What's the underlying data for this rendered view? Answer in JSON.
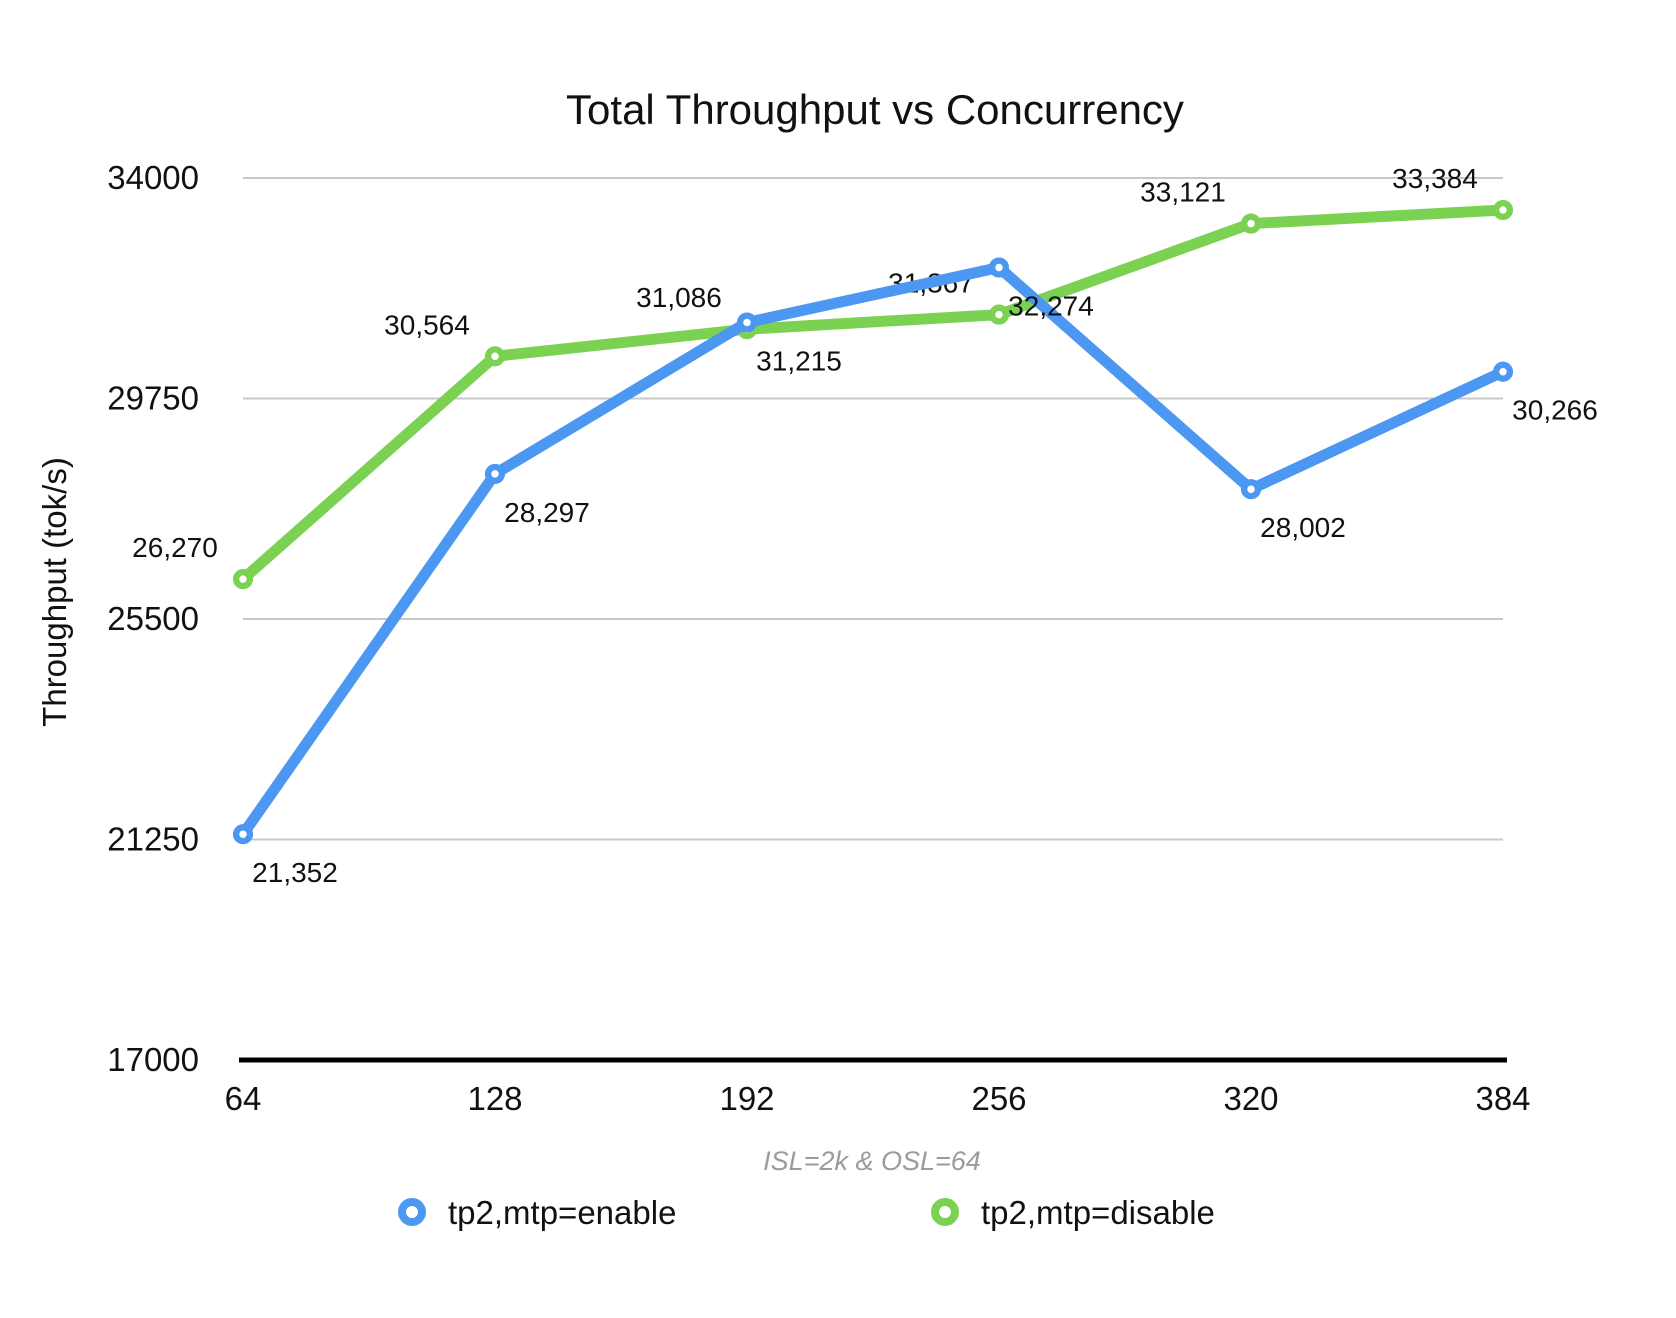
{
  "colors": {
    "background": "#ffffff",
    "grid": "#C8C8C8",
    "axis_baseline": "#000000",
    "text": "#111111",
    "subtitle": "#9B9B9B",
    "series_enable_blue": "#4B97F1",
    "series_disable_green": "#7BD152"
  },
  "chart_data": {
    "type": "line",
    "title": "Total Throughput vs Concurrency",
    "subtitle": "ISL=2k & OSL=64",
    "ylabel": "Throughput (tok/s)",
    "xlabel": "",
    "x_categories": [
      "64",
      "128",
      "192",
      "256",
      "320",
      "384"
    ],
    "x_values": [
      64,
      128,
      192,
      256,
      320,
      384
    ],
    "y_ticks": [
      34000,
      29750,
      25500,
      21250,
      17000
    ],
    "y_tick_labels": [
      "34000",
      "29750",
      "25500",
      "21250",
      "17000"
    ],
    "ylim": [
      17000,
      34000
    ],
    "grid": true,
    "legend_position": "bottom",
    "marker": "open-circle",
    "series": [
      {
        "name": "tp2,mtp=disable",
        "color": "#7BD152",
        "values": [
          26270,
          30564,
          31086,
          31367,
          33121,
          33384
        ],
        "labels": [
          "26,270",
          "30,564",
          "31,086",
          "31,367",
          "33,121",
          "33,384"
        ],
        "label_placement": "above-left"
      },
      {
        "name": "tp2,mtp=enable",
        "color": "#4B97F1",
        "values": [
          21352,
          28297,
          31215,
          32274,
          28002,
          30266
        ],
        "labels": [
          "21,352",
          "28,297",
          "31,215",
          "32,274",
          "28,002",
          "30,266"
        ],
        "label_placement": "below-right"
      }
    ],
    "legend": [
      {
        "label": "tp2,mtp=enable",
        "color": "#4B97F1"
      },
      {
        "label": "tp2,mtp=disable",
        "color": "#7BD152"
      }
    ]
  }
}
